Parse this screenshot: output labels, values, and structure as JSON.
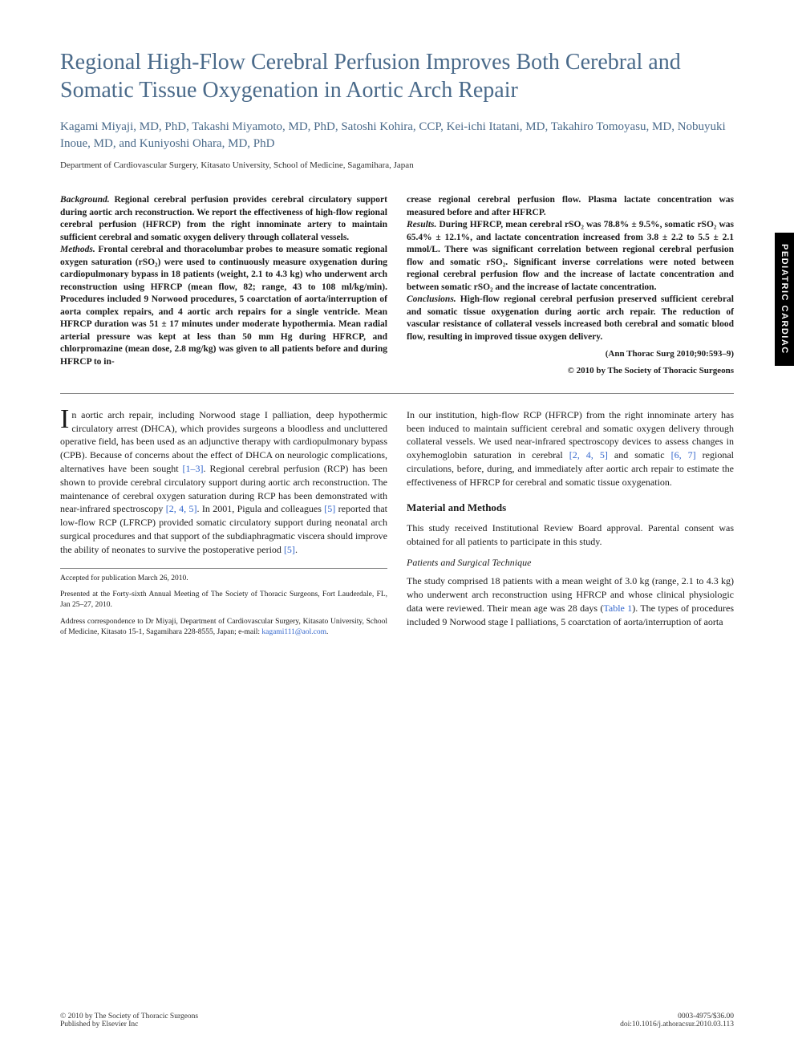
{
  "side_tab": "PEDIATRIC CARDIAC",
  "title": "Regional High-Flow Cerebral Perfusion Improves Both Cerebral and Somatic Tissue Oxygenation in Aortic Arch Repair",
  "authors": "Kagami Miyaji, MD, PhD, Takashi Miyamoto, MD, PhD, Satoshi Kohira, CCP, Kei-ichi Itatani, MD, Takahiro Tomoyasu, MD, Nobuyuki Inoue, MD, and Kuniyoshi Ohara, MD, PhD",
  "affiliation": "Department of Cardiovascular Surgery, Kitasato University, School of Medicine, Sagamihara, Japan",
  "abstract": {
    "left": {
      "background_label": "Background.",
      "background": " Regional cerebral perfusion provides cerebral circulatory support during aortic arch reconstruction. We report the effectiveness of high-flow regional cerebral perfusion (HFRCP) from the right innominate artery to maintain sufficient cerebral and somatic oxygen delivery through collateral vessels.",
      "methods_label": "Methods.",
      "methods": " Frontal cerebral and thoracolumbar probes to measure somatic regional oxygen saturation (rSO₂) were used to continuously measure oxygenation during cardiopulmonary bypass in 18 patients (weight, 2.1 to 4.3 kg) who underwent arch reconstruction using HFRCP (mean flow, 82; range, 43 to 108 ml/kg/min). Procedures included 9 Norwood procedures, 5 coarctation of aorta/interruption of aorta complex repairs, and 4 aortic arch repairs for a single ventricle. Mean HFRCP duration was 51 ± 17 minutes under moderate hypothermia. Mean radial arterial pressure was kept at less than 50 mm Hg during HFRCP, and chlorpromazine (mean dose, 2.8 mg/kg) was given to all patients before and during HFRCP to in-"
    },
    "right": {
      "cont": "crease regional cerebral perfusion flow. Plasma lactate concentration was measured before and after HFRCP.",
      "results_label": "Results.",
      "results": " During HFRCP, mean cerebral rSO₂ was 78.8% ± 9.5%, somatic rSO₂ was 65.4% ± 12.1%, and lactate concentration increased from 3.8 ± 2.2 to 5.5 ± 2.1 mmol/L. There was significant correlation between regional cerebral perfusion flow and somatic rSO₂. Significant inverse correlations were noted between regional cerebral perfusion flow and the increase of lactate concentration and between somatic rSO₂ and the increase of lactate concentration.",
      "conclusions_label": "Conclusions.",
      "conclusions": " High-flow regional cerebral perfusion preserved sufficient cerebral and somatic tissue oxygenation during aortic arch repair. The reduction of vascular resistance of collateral vessels increased both cerebral and somatic blood flow, resulting in improved tissue oxygen delivery.",
      "citation1": "(Ann Thorac Surg 2010;90:593–9)",
      "citation2": "© 2010 by The Society of Thoracic Surgeons"
    }
  },
  "body": {
    "left": {
      "dropcap": "I",
      "para1a": "n aortic arch repair, including Norwood stage I palliation, deep hypothermic circulatory arrest (DHCA), which provides surgeons a bloodless and uncluttered operative field, has been used as an adjunctive therapy with cardiopulmonary bypass (CPB). Because of concerns about the effect of DHCA on neurologic complications, alternatives have been sought ",
      "ref1": "[1–3]",
      "para1b": ". Regional cerebral perfusion (RCP) has been shown to provide cerebral circulatory support during aortic arch reconstruction. The maintenance of cerebral oxygen saturation during RCP has been demonstrated with near-infrared spectroscopy ",
      "ref2": "[2, 4, 5]",
      "para1c": ". In 2001, Pigula and colleagues ",
      "ref3": "[5]",
      "para1d": " reported that low-flow RCP (LFRCP) provided somatic circulatory support during neonatal arch surgical procedures and that support of the subdiaphragmatic viscera should improve the ability of neonates to survive the postoperative period ",
      "ref4": "[5]",
      "para1e": "."
    },
    "right": {
      "para1a": "In our institution, high-flow RCP (HFRCP) from the right innominate artery has been induced to maintain sufficient cerebral and somatic oxygen delivery through collateral vessels. We used near-infrared spectroscopy devices to assess changes in oxyhemoglobin saturation in cerebral ",
      "ref1": "[2, 4, 5]",
      "para1b": " and somatic ",
      "ref2": "[6, 7]",
      "para1c": " regional circulations, before, during, and immediately after aortic arch repair to estimate the effectiveness of HFRCP for cerebral and somatic tissue oxygenation.",
      "section_head": "Material and Methods",
      "para2": "This study received Institutional Review Board approval. Parental consent was obtained for all patients to participate in this study.",
      "subsection_head": "Patients and Surgical Technique",
      "para3a": "The study comprised 18 patients with a mean weight of 3.0 kg (range, 2.1 to 4.3 kg) who underwent arch reconstruction using HFRCP and whose clinical physiologic data were reviewed. Their mean age was 28 days (",
      "ref3": "Table 1",
      "para3b": "). The types of procedures included 9 Norwood stage I palliations, 5 coarctation of aorta/interruption of aorta"
    }
  },
  "footnotes": {
    "accepted": "Accepted for publication March 26, 2010.",
    "presented": "Presented at the Forty-sixth Annual Meeting of The Society of Thoracic Surgeons, Fort Lauderdale, FL, Jan 25–27, 2010.",
    "correspondence_a": "Address correspondence to Dr Miyaji, Department of Cardiovascular Surgery, Kitasato University, School of Medicine, Kitasato 15-1, Sagamihara 228-8555, Japan; e-mail: ",
    "email": "kagami111@aol.com",
    "correspondence_b": "."
  },
  "footer": {
    "left1": "© 2010 by The Society of Thoracic Surgeons",
    "left2": "Published by Elsevier Inc",
    "right1": "0003-4975/$36.00",
    "right2": "doi:10.1016/j.athoracsur.2010.03.113"
  },
  "colors": {
    "title": "#4a6a8a",
    "link": "#3366cc",
    "text": "#1a1a1a",
    "tab_bg": "#000000",
    "tab_fg": "#ffffff"
  }
}
